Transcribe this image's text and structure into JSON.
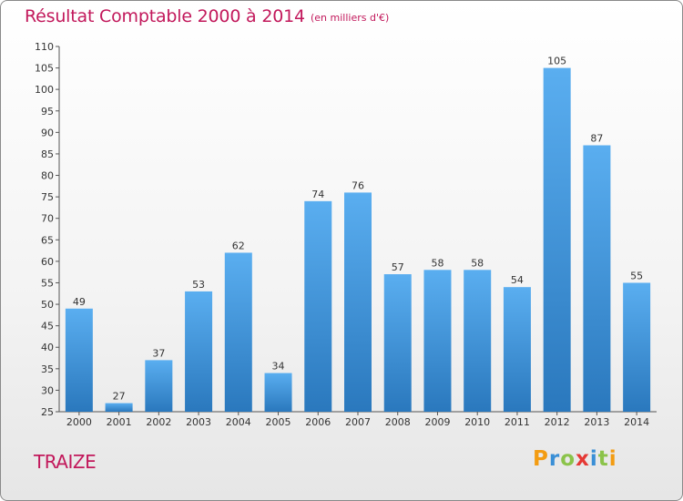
{
  "chart_data": {
    "type": "bar",
    "title": "Résultat Comptable 2000 à 2014",
    "subtitle": "(en milliers d'€)",
    "categories": [
      "2000",
      "2001",
      "2002",
      "2003",
      "2004",
      "2005",
      "2006",
      "2007",
      "2008",
      "2009",
      "2010",
      "2011",
      "2012",
      "2013",
      "2014"
    ],
    "values": [
      49,
      27,
      37,
      53,
      62,
      34,
      74,
      76,
      57,
      58,
      58,
      54,
      105,
      87,
      55
    ],
    "ylim": [
      25,
      110
    ],
    "yticks": [
      25,
      30,
      35,
      40,
      45,
      50,
      55,
      60,
      65,
      70,
      75,
      80,
      85,
      90,
      95,
      100,
      105,
      110
    ],
    "xlabel": "",
    "ylabel": "",
    "grid": false,
    "bar_color": "#3a8fd6"
  },
  "place_name": "TRAIZE",
  "logo": {
    "text": "Proxiti",
    "letters": [
      {
        "ch": "P",
        "color": "#f39c12"
      },
      {
        "ch": "r",
        "color": "#3a8fd6"
      },
      {
        "ch": "o",
        "color": "#8bc34a"
      },
      {
        "ch": "x",
        "color": "#e53935"
      },
      {
        "ch": "i",
        "color": "#3a8fd6"
      },
      {
        "ch": "t",
        "color": "#8bc34a"
      },
      {
        "ch": "i",
        "color": "#f39c12"
      }
    ]
  }
}
